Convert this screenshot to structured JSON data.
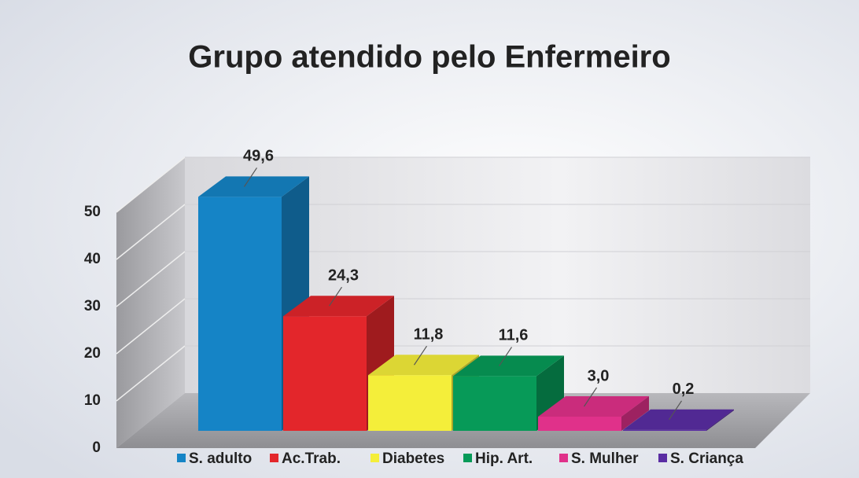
{
  "chart_data": {
    "type": "bar3d",
    "title": "Grupo atendido pelo Enfermeiro",
    "categories": [
      "S. adulto",
      "Ac.Trab.",
      "Diabetes",
      "Hip. Art.",
      "S. Mulher",
      "S. Criança"
    ],
    "values": [
      49.6,
      24.3,
      11.8,
      11.6,
      3.0,
      0.2
    ],
    "value_labels": [
      "49,6",
      "24,3",
      "11,8",
      "11,6",
      "3,0",
      "0,2"
    ],
    "colors": [
      "#1584c6",
      "#e3262b",
      "#f4ee3a",
      "#079a58",
      "#e0318a",
      "#5a2da3"
    ],
    "ylim": [
      0,
      50
    ],
    "yticks": [
      0,
      10,
      20,
      30,
      40,
      50
    ],
    "grid": true,
    "legend": "bottom"
  }
}
